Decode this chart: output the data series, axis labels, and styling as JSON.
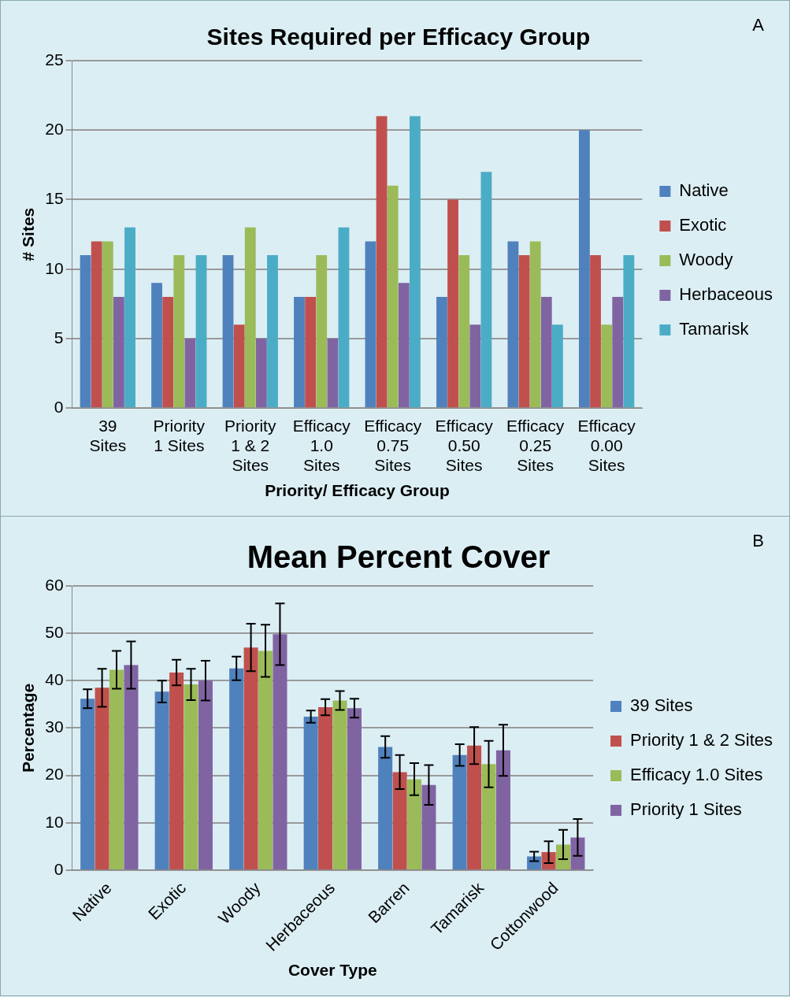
{
  "chart_data": [
    {
      "type": "bar",
      "title": "Sites Required per Efficacy Group",
      "xlabel": "Priority/ Efficacy Group",
      "ylabel": "# Sites",
      "categories": [
        "39 Sites",
        "Priority 1 Sites",
        "Priority 1 & 2 Sites",
        "Efficacy 1.0 Sites",
        "Efficacy 0.75 Sites",
        "Efficacy 0.50 Sites",
        "Efficacy 0.25 Sites",
        "Efficacy 0.00 Sites"
      ],
      "series": [
        {
          "name": "Native",
          "color": "#4f81bd",
          "values": [
            11,
            9,
            11,
            8,
            12,
            8,
            12,
            20
          ]
        },
        {
          "name": "Exotic",
          "color": "#c0504d",
          "values": [
            12,
            8,
            6,
            8,
            21,
            15,
            11,
            11
          ]
        },
        {
          "name": "Woody",
          "color": "#9bbb59",
          "values": [
            12,
            11,
            13,
            11,
            16,
            11,
            12,
            6
          ]
        },
        {
          "name": "Herbaceous",
          "color": "#8064a2",
          "values": [
            8,
            5,
            5,
            5,
            9,
            6,
            8,
            8
          ]
        },
        {
          "name": "Tamarisk",
          "color": "#4bacc6",
          "values": [
            13,
            11,
            11,
            13,
            21,
            17,
            6,
            11
          ]
        }
      ],
      "ylim": [
        0,
        25
      ],
      "yticks": [
        0,
        5,
        10,
        15,
        20,
        25
      ],
      "grid": "y",
      "legend": "right",
      "annotations": [
        "A"
      ]
    },
    {
      "type": "bar",
      "title": "Mean Percent Cover",
      "xlabel": "Cover Type",
      "ylabel": "Percentage",
      "categories": [
        "Native",
        "Exotic",
        "Woody",
        "Herbaceous",
        "Barren",
        "Tamarisk",
        "Cottonwood"
      ],
      "series": [
        {
          "name": "39 Sites",
          "color": "#4f81bd",
          "values": [
            36.2,
            37.7,
            42.6,
            32.4,
            26,
            24.3,
            2.9
          ],
          "errors": [
            2,
            2.3,
            2.5,
            1.3,
            2.3,
            2.3,
            1
          ]
        },
        {
          "name": "Priority 1 & 2 Sites",
          "color": "#c0504d",
          "values": [
            38.5,
            41.7,
            47,
            34.4,
            20.7,
            26.3,
            3.8
          ],
          "errors": [
            4,
            2.7,
            5,
            1.7,
            3.6,
            3.9,
            2.3
          ]
        },
        {
          "name": "Efficacy 1.0 Sites",
          "color": "#9bbb59",
          "values": [
            42.3,
            39.2,
            46.3,
            35.8,
            19.2,
            22.4,
            5.4
          ],
          "errors": [
            4,
            3.3,
            5.5,
            2,
            3.4,
            4.9,
            3.1
          ]
        },
        {
          "name": "Priority 1 Sites",
          "color": "#8064a2",
          "values": [
            43.3,
            40,
            49.8,
            34.2,
            18,
            25.3,
            6.9
          ],
          "errors": [
            5,
            4.2,
            6.5,
            2,
            4.2,
            5.4,
            3.9
          ]
        }
      ],
      "ylim": [
        0,
        60
      ],
      "yticks": [
        0,
        10,
        20,
        30,
        40,
        50,
        60
      ],
      "grid": "y",
      "legend": "right",
      "annotations": [
        "B"
      ]
    }
  ]
}
